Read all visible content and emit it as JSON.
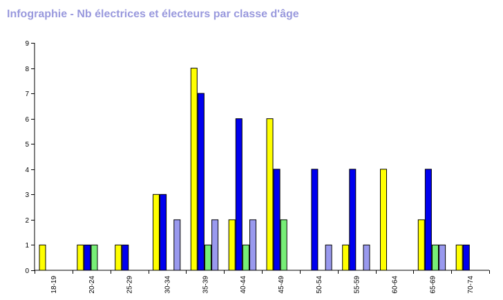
{
  "title": "Infographie - Nb électrices et électeurs par classe d'âge",
  "chart_data": {
    "type": "bar",
    "title": "Infographie - Nb électrices et électeurs par classe d'âge",
    "xlabel": "",
    "ylabel": "",
    "ylim": [
      0,
      9
    ],
    "yticks": [
      "0",
      "1",
      "2",
      "3",
      "4",
      "5",
      "6",
      "7",
      "8",
      "9"
    ],
    "grid": false,
    "categories": [
      "18-19",
      "20-24",
      "25-29",
      "30-34",
      "35-39",
      "40-44",
      "45-49",
      "50-54",
      "55-59",
      "60-64",
      "65-69",
      "70-74"
    ],
    "series": [
      {
        "color": "#ffff00",
        "values": [
          1,
          1,
          1,
          3,
          8,
          2,
          6,
          0,
          1,
          4,
          2,
          1
        ]
      },
      {
        "color": "#0000ee",
        "values": [
          0,
          1,
          1,
          3,
          7,
          6,
          4,
          4,
          4,
          0,
          4,
          1
        ]
      },
      {
        "color": "#77ee77",
        "values": [
          0,
          1,
          0,
          0,
          1,
          1,
          2,
          0,
          0,
          0,
          1,
          0
        ]
      },
      {
        "color": "#9999ee",
        "values": [
          0,
          0,
          0,
          2,
          2,
          2,
          0,
          1,
          1,
          0,
          1,
          0
        ]
      }
    ]
  }
}
